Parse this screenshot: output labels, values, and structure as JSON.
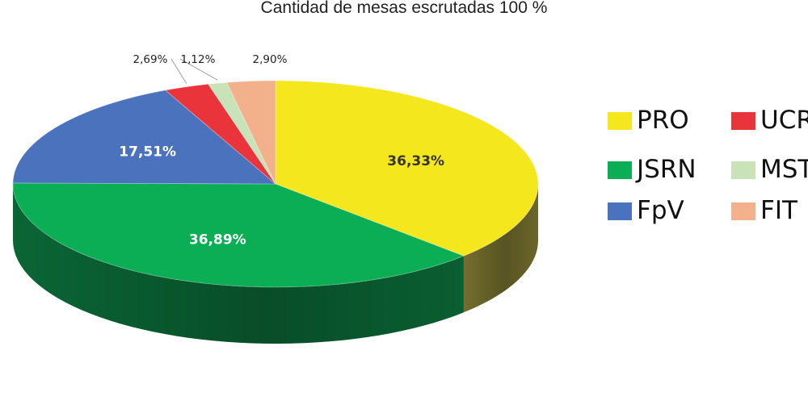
{
  "chart_data": {
    "type": "pie",
    "title": "Cantidad de mesas escrutadas 100 %",
    "slices": [
      {
        "name": "PRO",
        "value": 36.33,
        "label": "36,33%",
        "color": "#F5E71E",
        "side": "#7A7430"
      },
      {
        "name": "JSRN",
        "value": 36.89,
        "label": "36,89%",
        "color": "#0BAE55",
        "side": "#0B6B38"
      },
      {
        "name": "FpV",
        "value": 17.51,
        "label": "17,51%",
        "color": "#4A72BD",
        "side": "#2E4A80"
      },
      {
        "name": "UCR",
        "value": 2.69,
        "label": "2,69%",
        "color": "#E8343A",
        "side": "#8E2226"
      },
      {
        "name": "MST",
        "value": 1.12,
        "label": "1,12%",
        "color": "#C7E3B7",
        "side": "#7C9870"
      },
      {
        "name": "FIT",
        "value": 2.9,
        "label": "2,90%",
        "color": "#F2B08B",
        "side": "#9C6F55"
      }
    ],
    "legend": {
      "position": "right",
      "items": [
        {
          "name": "PRO",
          "color": "#F5E71E"
        },
        {
          "name": "UCR",
          "color": "#E8343A"
        },
        {
          "name": "JSRN",
          "color": "#0BAE55"
        },
        {
          "name": "MST",
          "color": "#C7E3B7"
        },
        {
          "name": "FpV",
          "color": "#4A72BD"
        },
        {
          "name": "FIT",
          "color": "#F2B08B"
        }
      ]
    }
  }
}
